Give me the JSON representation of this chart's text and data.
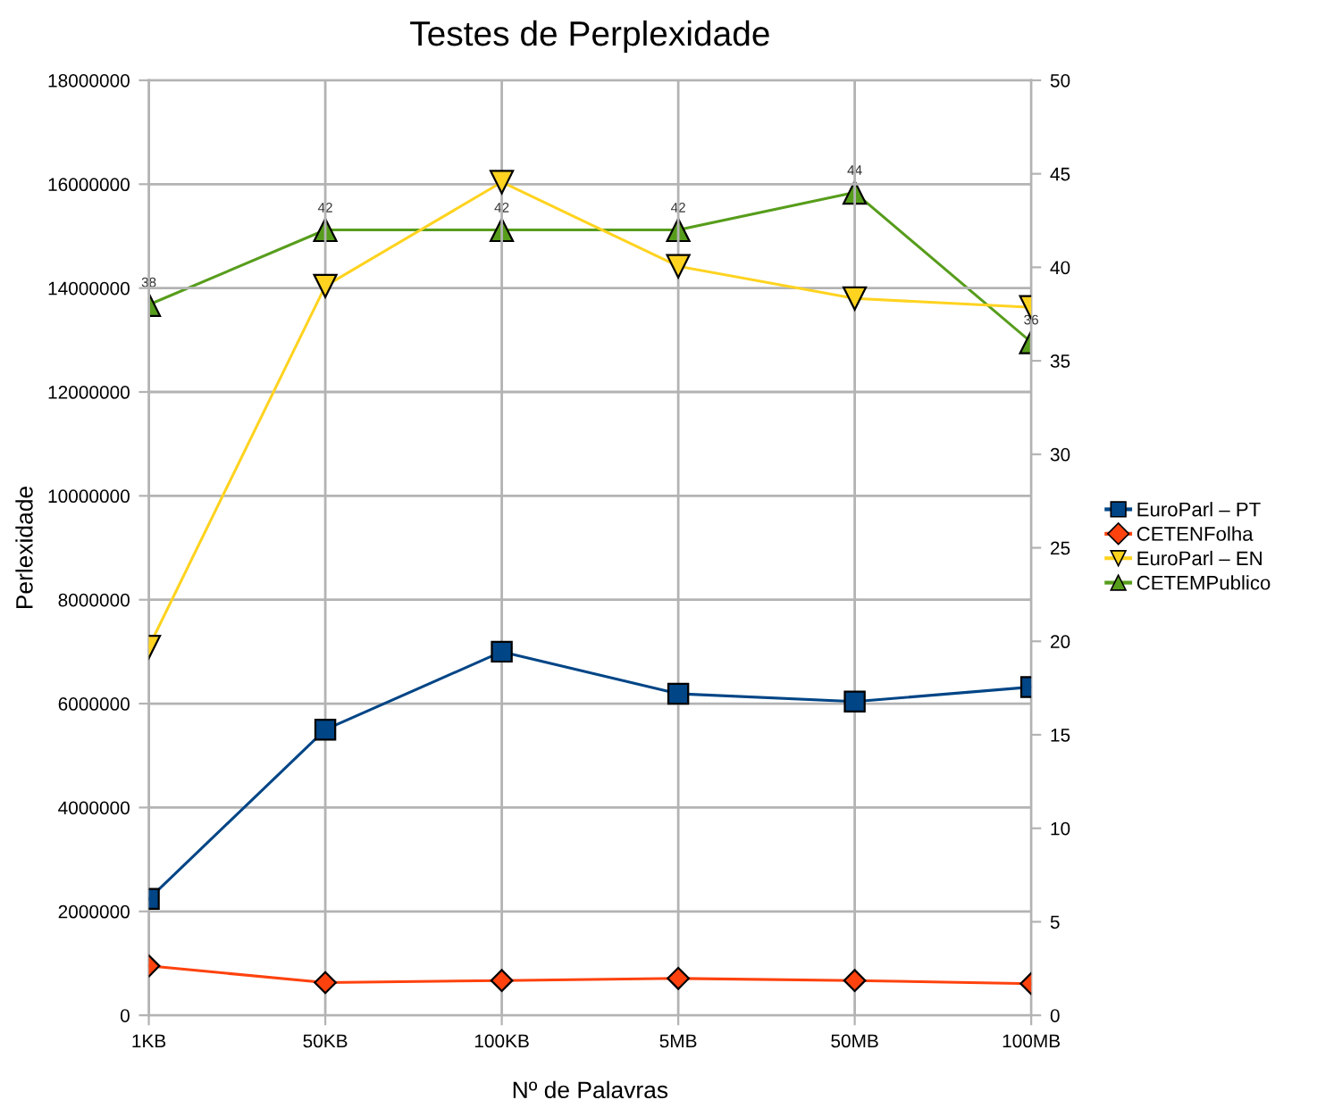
{
  "chart_data": {
    "type": "line",
    "title": "Testes de Perplexidade",
    "xlabel": "Nº de Palavras",
    "ylabel": "Perlexidade",
    "categories": [
      "1KB",
      "50KB",
      "100KB",
      "5MB",
      "50MB",
      "100MB"
    ],
    "series": [
      {
        "name": "EuroParl – PT",
        "color": "#004586",
        "marker": "square",
        "values": [
          2240000,
          5500000,
          7000000,
          6190000,
          6040000,
          6320000
        ]
      },
      {
        "name": "CETENFolha",
        "color": "#ff420e",
        "marker": "diamond",
        "values": [
          950000,
          630000,
          670000,
          710000,
          670000,
          610000
        ]
      },
      {
        "name": "EuroParl – EN",
        "color": "#ffd320",
        "marker": "triangle_down",
        "values": [
          7090000,
          14040000,
          16040000,
          14420000,
          13800000,
          13630000
        ]
      },
      {
        "name": "CETEMPublico",
        "color": "#579d1c",
        "marker": "triangle",
        "axis": "y2",
        "values": [
          38,
          42,
          42,
          42,
          44,
          36
        ],
        "value_labels": [
          "38",
          "42",
          "42",
          "42",
          "44",
          "36"
        ]
      }
    ],
    "ylim": [
      0,
      18000000
    ],
    "yticks": [
      0,
      2000000,
      4000000,
      6000000,
      8000000,
      10000000,
      12000000,
      14000000,
      16000000,
      18000000
    ],
    "y2lim": [
      0,
      50
    ],
    "y2ticks": [
      0,
      5,
      10,
      15,
      20,
      25,
      30,
      35,
      40,
      45,
      50
    ],
    "grid": true,
    "legend": "right",
    "line_style": "solid"
  }
}
